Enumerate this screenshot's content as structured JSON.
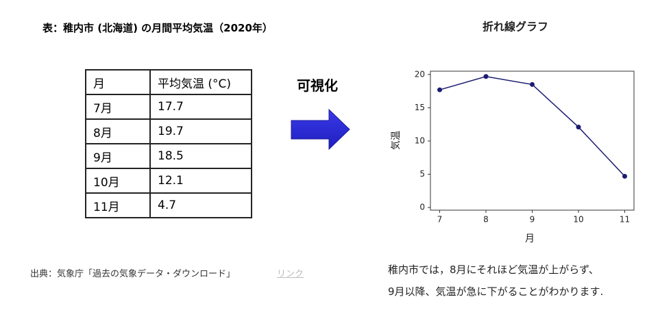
{
  "table_title": "表：稚内市 (北海道) の月間平均気温（2020年）",
  "table": {
    "header": [
      "月",
      "平均気温 (°C)"
    ],
    "rows": [
      [
        "7月",
        "17.7"
      ],
      [
        "8月",
        "19.7"
      ],
      [
        "9月",
        "18.5"
      ],
      [
        "10月",
        "12.1"
      ],
      [
        "11月",
        "4.7"
      ]
    ]
  },
  "source": "出典：気象庁「過去の気象データ・ダウンロード」",
  "link": "リンク",
  "arrow_label": "可視化",
  "chart_data": {
    "type": "line",
    "title": "折れ線グラフ",
    "xlabel": "月",
    "ylabel": "気温",
    "x": [
      7,
      8,
      9,
      10,
      11
    ],
    "series": [
      {
        "name": "気温",
        "color": "#1c1c72",
        "values": [
          17.7,
          19.7,
          18.5,
          12.1,
          4.7
        ]
      }
    ],
    "xlim": [
      6.8,
      11.2
    ],
    "ylim": [
      -0.4,
      20.5
    ],
    "xticks": [
      7,
      8,
      9,
      10,
      11
    ],
    "yticks": [
      0,
      5,
      10,
      15,
      20
    ]
  },
  "description": [
    "稚内市では，8月にそれほど気温が上がらず、",
    "9月以降、気温が急に下がることがわかります."
  ]
}
